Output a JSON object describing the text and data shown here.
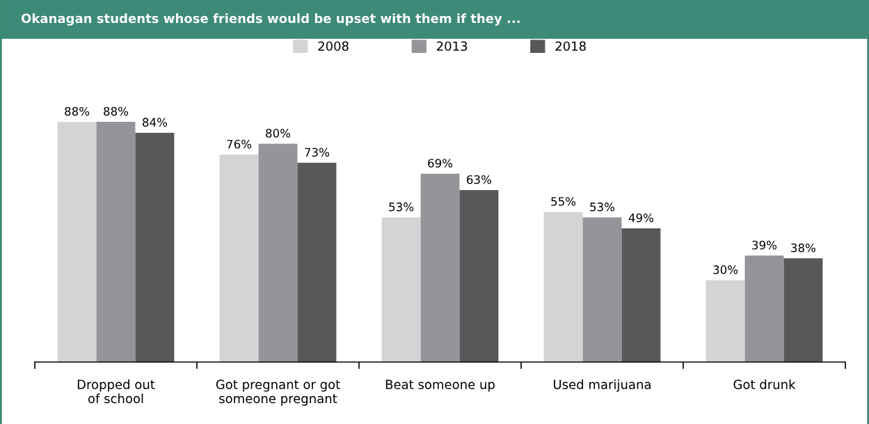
{
  "chart_data": {
    "type": "bar",
    "title": "Okanagan students whose friends would be upset with them if they ...",
    "categories": [
      "Dropped out\nof school",
      "Got pregnant or got\nsomeone pregnant",
      "Beat someone up",
      "Used marijuana",
      "Got drunk"
    ],
    "series": [
      {
        "name": "2008",
        "color": "#d3d4d6",
        "values": [
          88,
          76,
          53,
          55,
          30
        ],
        "value_labels": [
          "88%",
          "76%",
          "53%",
          "55%",
          "30%"
        ]
      },
      {
        "name": "2013",
        "color": "#949598",
        "values": [
          88,
          80,
          69,
          53,
          39
        ],
        "value_labels": [
          "88%",
          "80%",
          "69%",
          "53%",
          "39%"
        ]
      },
      {
        "name": "2018",
        "color": "#58585a",
        "values": [
          84,
          73,
          63,
          49,
          38
        ],
        "value_labels": [
          "84%",
          "73%",
          "63%",
          "49%",
          "38%"
        ]
      }
    ],
    "tick_labels": "x",
    "legend": "top",
    "grid": false
  }
}
